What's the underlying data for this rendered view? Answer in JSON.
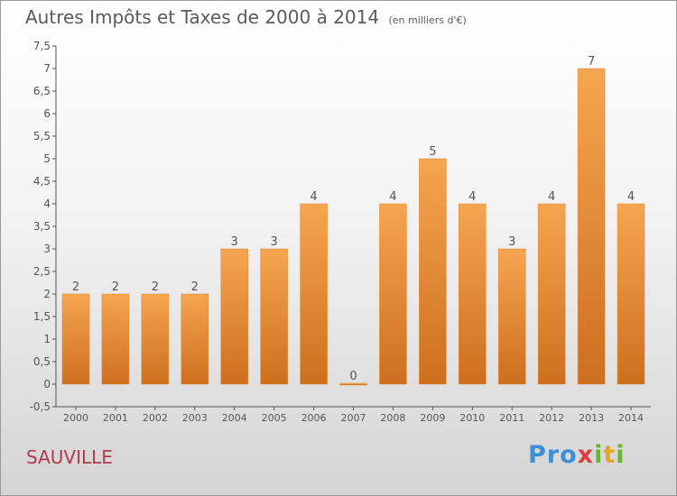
{
  "title": {
    "main": "Autres Impôts et Taxes de 2000 à 2014",
    "unit": "(en milliers d'€)"
  },
  "commune": "SAUVILLE",
  "logo": {
    "parts": [
      "Pro",
      "x",
      "i",
      "t",
      "i"
    ]
  },
  "colors": {
    "bar_top": "#f6a551",
    "bar_bottom": "#cd6f1e",
    "axis": "#555555",
    "label": "#555555"
  },
  "chart_data": {
    "type": "bar",
    "categories": [
      "2000",
      "2001",
      "2002",
      "2003",
      "2004",
      "2005",
      "2006",
      "2007",
      "2008",
      "2009",
      "2010",
      "2011",
      "2012",
      "2013",
      "2014"
    ],
    "values": [
      2,
      2,
      2,
      2,
      3,
      3,
      4,
      0,
      4,
      5,
      4,
      3,
      4,
      7,
      4
    ],
    "value_labels": [
      "2",
      "2",
      "2",
      "2",
      "3",
      "3",
      "4",
      "0",
      "4",
      "5",
      "4",
      "3",
      "4",
      "7",
      "4"
    ],
    "ylim": [
      -0.5,
      7.5
    ],
    "yticks": [
      -0.5,
      0,
      0.5,
      1,
      1.5,
      2,
      2.5,
      3,
      3.5,
      4,
      4.5,
      5,
      5.5,
      6,
      6.5,
      7,
      7.5
    ],
    "ytick_labels": [
      "-0,5",
      "0",
      "0,5",
      "1",
      "1,5",
      "2",
      "2,5",
      "3",
      "3,5",
      "4",
      "4,5",
      "5",
      "5,5",
      "6",
      "6,5",
      "7",
      "7,5"
    ],
    "xlabel": "",
    "ylabel": "",
    "grid": false,
    "legend": "none"
  }
}
